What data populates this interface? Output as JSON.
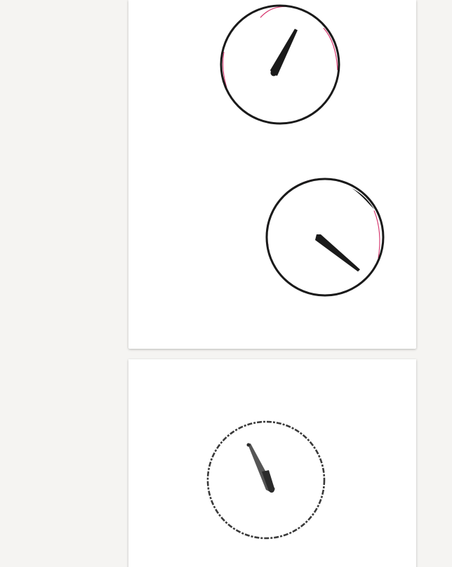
{
  "document_viewer": {
    "pages": [
      {
        "page_label": "",
        "drawings": [
          {
            "name": "clock-drawing-1",
            "hand_direction": "up-right"
          },
          {
            "name": "clock-drawing-2",
            "hand_direction": "down-right"
          }
        ]
      },
      {
        "page_label": "",
        "drawings": [
          {
            "name": "clock-drawing-3",
            "hand_direction": "up-left"
          }
        ]
      }
    ],
    "colors": {
      "background": "#f5f4f2",
      "page": "#ffffff",
      "ink": "#1a1a1a",
      "pencil_trace": "#d6336c"
    }
  }
}
